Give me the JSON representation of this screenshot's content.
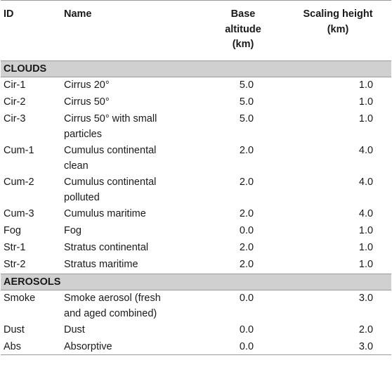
{
  "headers": {
    "id": "ID",
    "name": "Name",
    "base_line1": "Base",
    "base_line2": "altitude",
    "base_line3": "(km)",
    "scale_line1": "Scaling height",
    "scale_line2": "(km)"
  },
  "sections": [
    {
      "title": "CLOUDS",
      "rows": [
        {
          "id": "Cir-1",
          "name": "Cirrus 20°",
          "base": "5.0",
          "scale": "1.0"
        },
        {
          "id": "Cir-2",
          "name": "Cirrus 50°",
          "base": "5.0",
          "scale": "1.0"
        },
        {
          "id": "Cir-3",
          "name_line1": "Cirrus 50° with small",
          "name_line2": "particles",
          "base": "5.0",
          "scale": "1.0"
        },
        {
          "id": "Cum-1",
          "name_line1": "Cumulus continental",
          "name_line2": "clean",
          "base": "2.0",
          "scale": "4.0"
        },
        {
          "id": "Cum-2",
          "name_line1": "Cumulus continental",
          "name_line2": "polluted",
          "base": "2.0",
          "scale": "4.0"
        },
        {
          "id": "Cum-3",
          "name": "Cumulus maritime",
          "base": "2.0",
          "scale": "4.0"
        },
        {
          "id": "Fog",
          "name": "Fog",
          "base": "0.0",
          "scale": "1.0"
        },
        {
          "id": "Str-1",
          "name": "Stratus continental",
          "base": "2.0",
          "scale": "1.0"
        },
        {
          "id": "Str-2",
          "name": "Stratus maritime",
          "base": "2.0",
          "scale": "1.0"
        }
      ]
    },
    {
      "title": "AEROSOLS",
      "rows": [
        {
          "id": "Smoke",
          "name_line1": "Smoke aerosol (fresh",
          "name_line2": "and aged combined)",
          "base": "0.0",
          "scale": "3.0"
        },
        {
          "id": "Dust",
          "name": "Dust",
          "base": "0.0",
          "scale": "2.0"
        },
        {
          "id": "Abs",
          "name": "Absorptive",
          "base": "0.0",
          "scale": "3.0"
        }
      ]
    }
  ]
}
